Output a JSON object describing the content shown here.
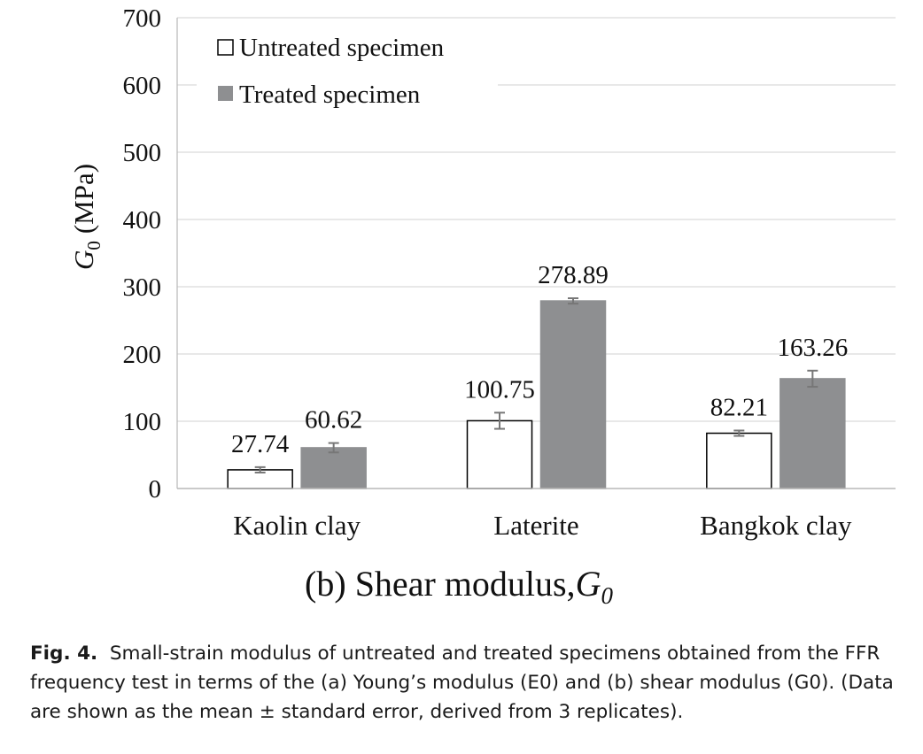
{
  "chart_data": {
    "type": "bar",
    "title": "(b) Shear modulus,",
    "title_symbol": "G",
    "title_subscript": "0",
    "ylabel_symbol": "G",
    "ylabel_subscript": "0",
    "ylabel_unit": "(MPa)",
    "xlabel": "",
    "ylim": [
      0,
      700
    ],
    "yticks": [
      0,
      100,
      200,
      300,
      400,
      500,
      600,
      700
    ],
    "grid": true,
    "legend_position": "top-left",
    "categories": [
      "Kaolin clay",
      "Laterite",
      "Bangkok clay"
    ],
    "series": [
      {
        "name": "Untreated specimen",
        "values": [
          27.74,
          100.75,
          82.21
        ],
        "labels": [
          "27.74",
          "100.75",
          "82.21"
        ],
        "errors": [
          4,
          12,
          4
        ],
        "color": "#ffffff",
        "stroke": "#000000"
      },
      {
        "name": "Treated specimen",
        "values": [
          60.62,
          278.89,
          163.26
        ],
        "labels": [
          "60.62",
          "278.89",
          "163.26"
        ],
        "errors": [
          7,
          4,
          12
        ],
        "color": "#8e8f91",
        "stroke": "#8e8f91"
      }
    ]
  },
  "caption": {
    "label": "Fig. 4.",
    "text": "Small-strain modulus of untreated and treated specimens obtained from the FFR frequency test in terms of the (a) Young’s modulus (E0) and (b) shear modulus (G0). (Data are shown as the mean ± standard error, derived from 3 replicates)."
  }
}
